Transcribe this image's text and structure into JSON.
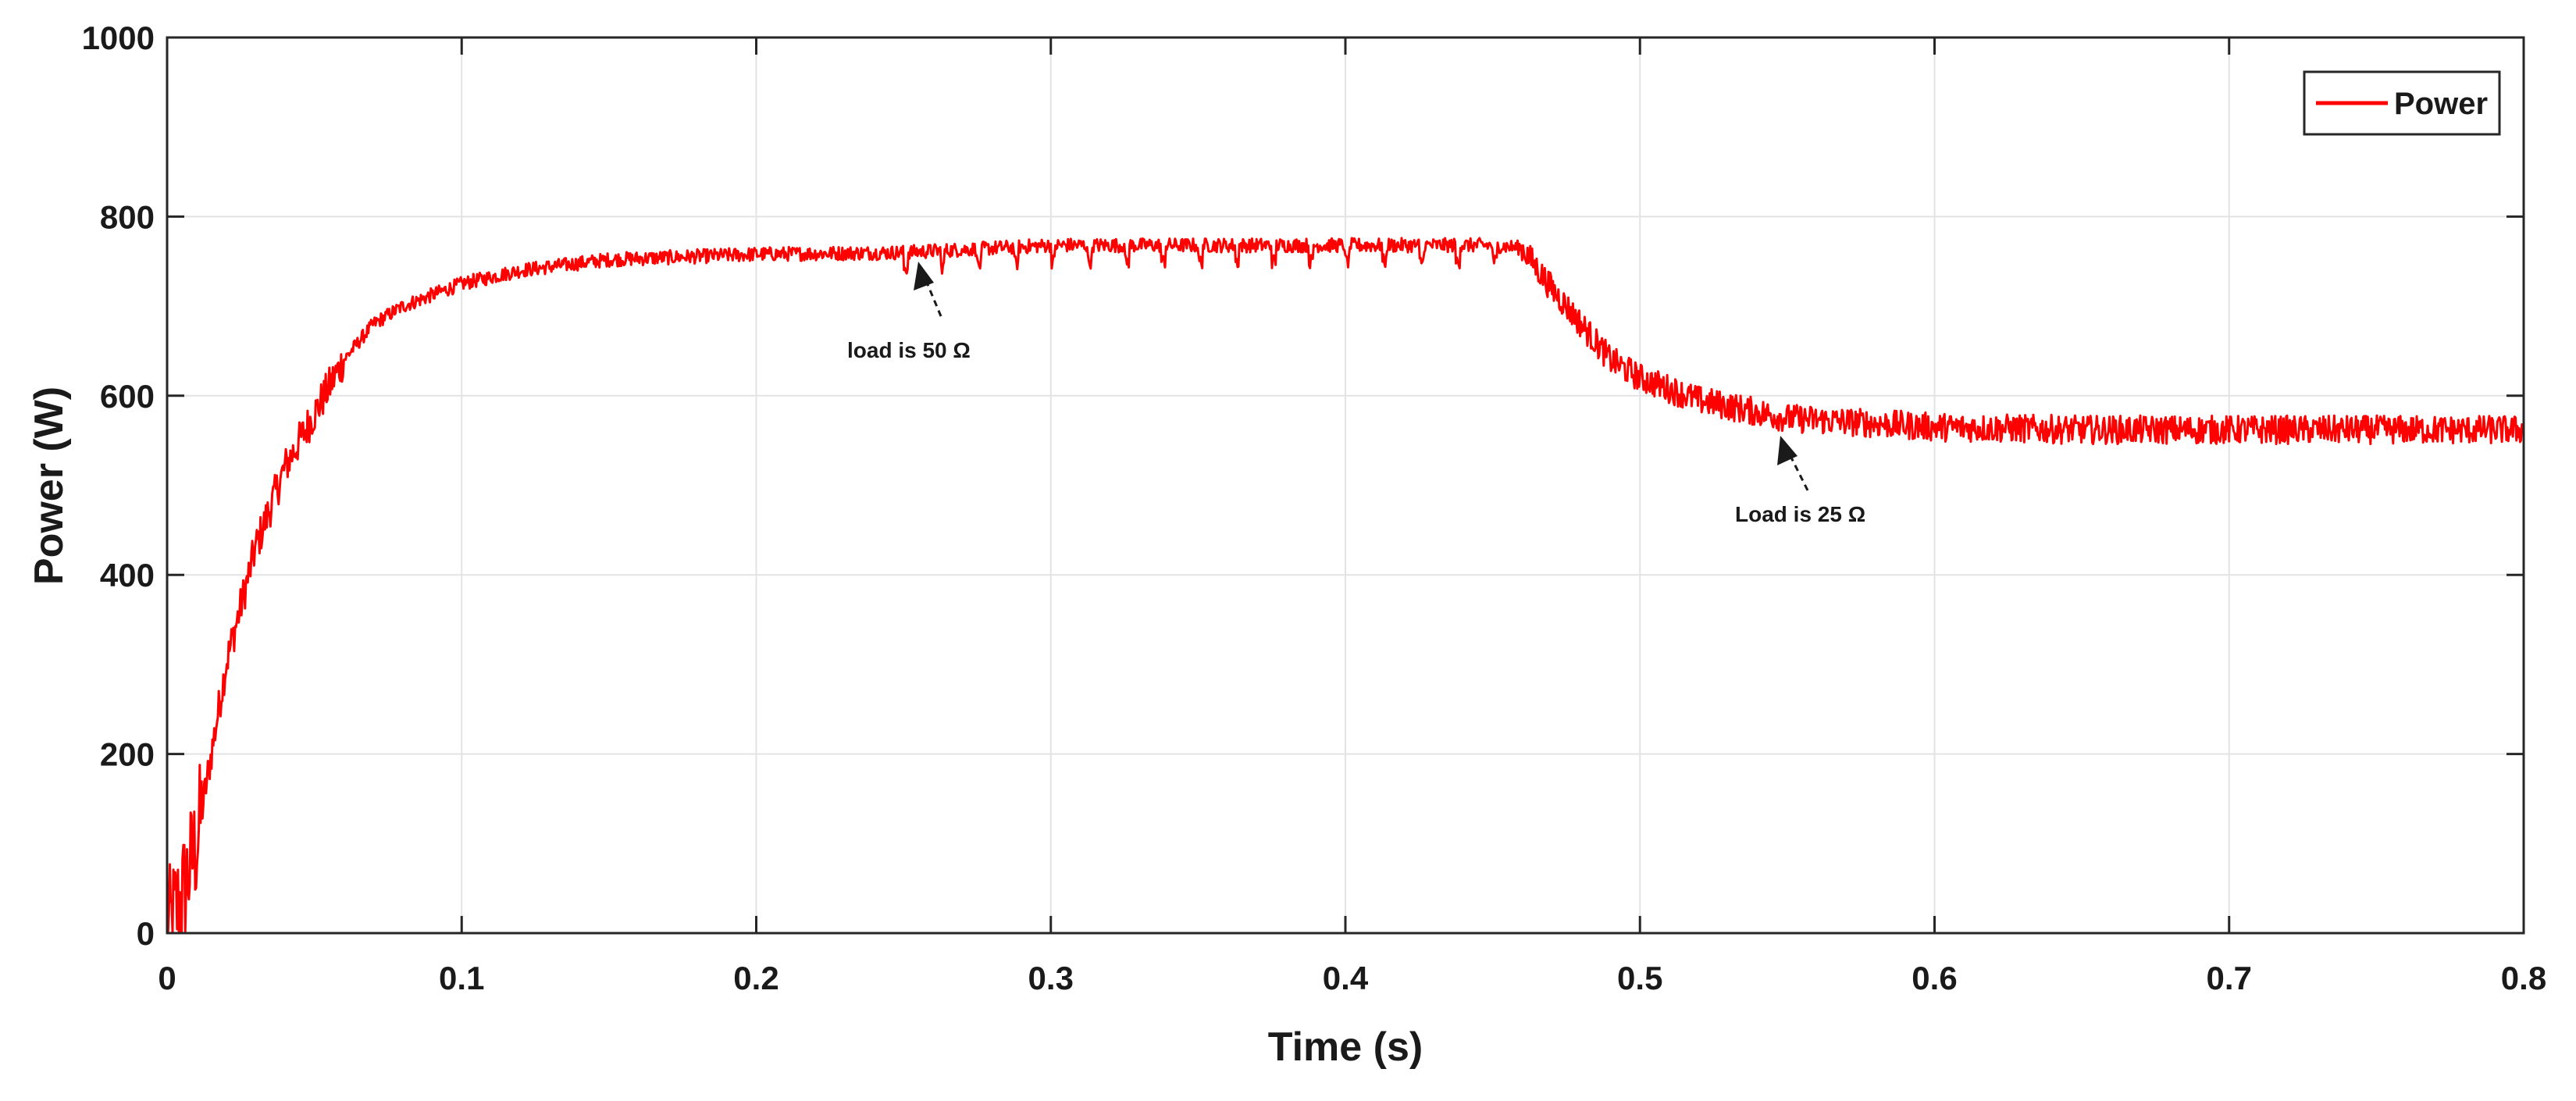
{
  "chart_data": {
    "type": "line",
    "xlabel": "Time (s)",
    "ylabel": "Power (W)",
    "xlim": [
      0,
      0.8
    ],
    "ylim": [
      0,
      1000
    ],
    "xticks": [
      "0",
      "0.1",
      "0.2",
      "0.3",
      "0.4",
      "0.5",
      "0.6",
      "0.7",
      "0.8"
    ],
    "yticks": [
      "0",
      "200",
      "400",
      "600",
      "800",
      "1000"
    ],
    "grid": true,
    "legend_position": "top-right",
    "series": [
      {
        "name": "Power",
        "color": "#ff0000",
        "x": [
          0,
          0.005,
          0.01,
          0.02,
          0.03,
          0.04,
          0.05,
          0.06,
          0.07,
          0.08,
          0.1,
          0.12,
          0.15,
          0.2,
          0.25,
          0.3,
          0.35,
          0.4,
          0.45,
          0.46,
          0.47,
          0.48,
          0.49,
          0.5,
          0.52,
          0.55,
          0.6,
          0.65,
          0.7,
          0.75,
          0.8
        ],
        "y": [
          0,
          40,
          100,
          300,
          430,
          520,
          580,
          640,
          680,
          700,
          725,
          740,
          752,
          758,
          760,
          768,
          768,
          768,
          768,
          765,
          720,
          680,
          640,
          620,
          595,
          575,
          565,
          562,
          562,
          562,
          562
        ]
      }
    ],
    "annotations": [
      {
        "text": "load is 50 Ω",
        "x": 0.26,
        "y": 760
      },
      {
        "text": "Load is 25 Ω",
        "x": 0.547,
        "y": 560
      }
    ]
  }
}
